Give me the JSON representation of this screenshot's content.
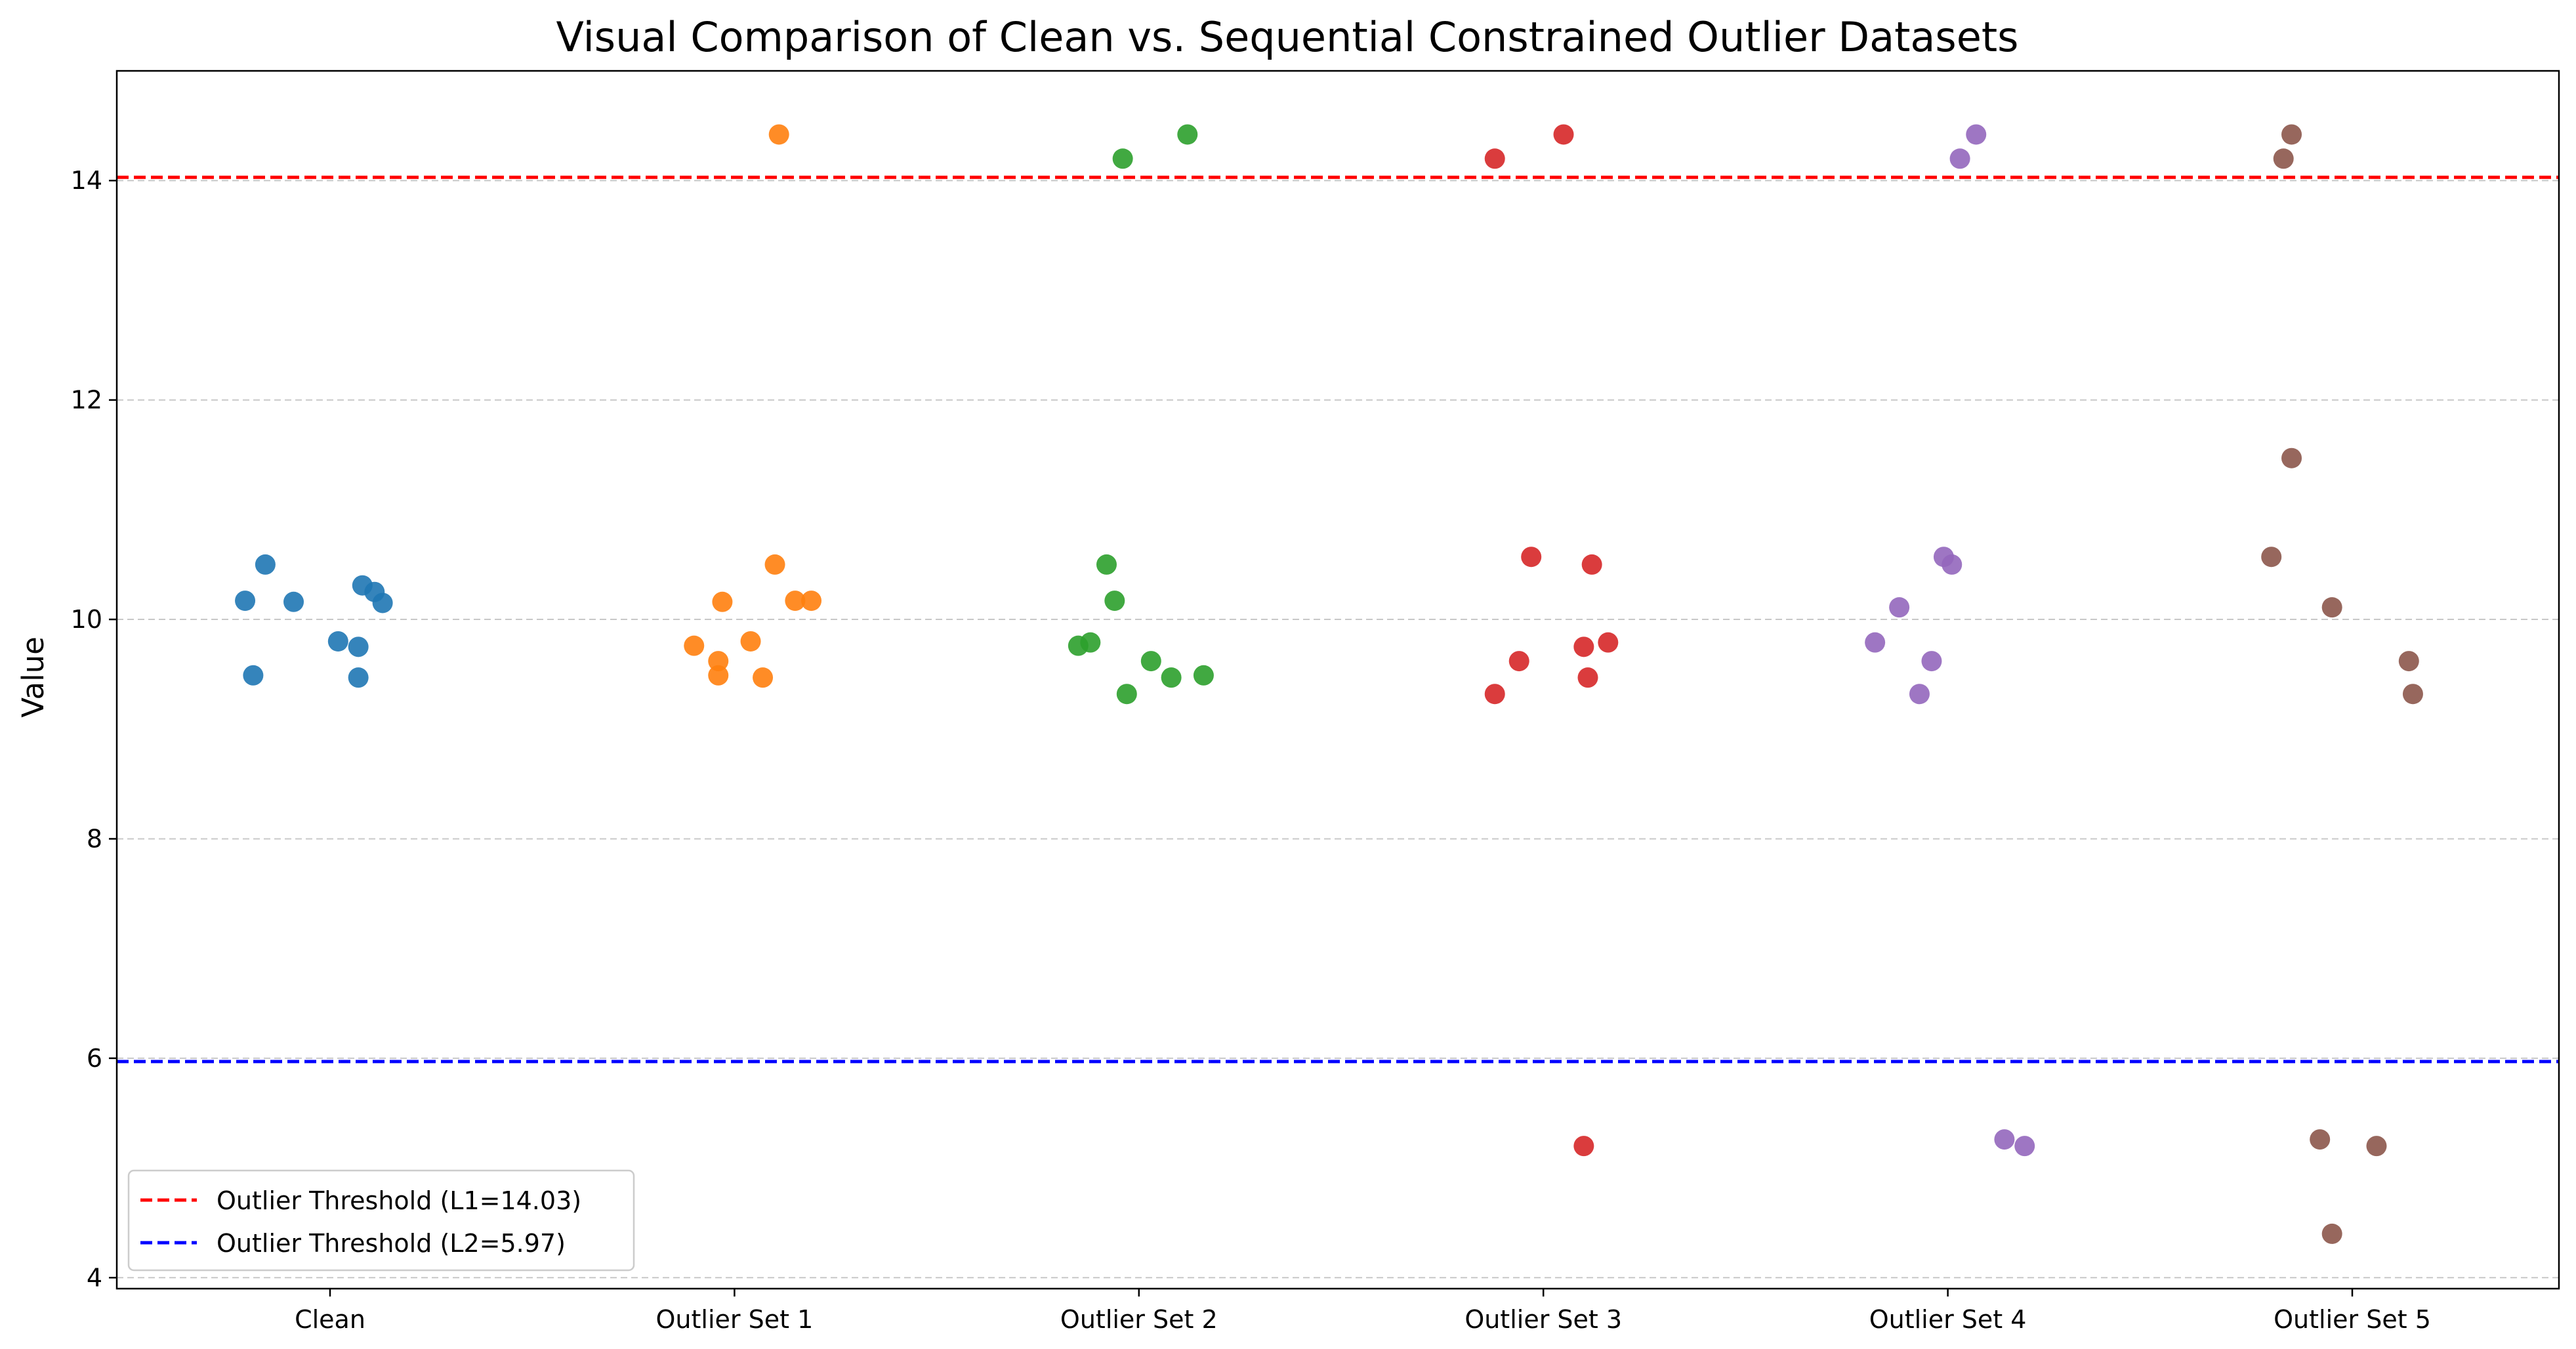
{
  "chart_data": {
    "type": "scatter",
    "title": "Visual Comparison of Clean vs. Sequential Constrained Outlier Datasets",
    "xlabel": "",
    "ylabel": "Value",
    "ylim": [
      3.9,
      15.0
    ],
    "yticks": [
      4,
      6,
      8,
      10,
      12,
      14
    ],
    "grid": "y-dashed",
    "legend_position": "bottom-left",
    "categories": [
      "Clean",
      "Outlier Set 1",
      "Outlier Set 2",
      "Outlier Set 3",
      "Outlier Set 4",
      "Outlier Set 5"
    ],
    "series": [
      {
        "category": "Clean",
        "color": "#1f77b4",
        "points": [
          {
            "x": -0.21,
            "y": 10.17
          },
          {
            "x": -0.19,
            "y": 9.49
          },
          {
            "x": -0.16,
            "y": 10.5
          },
          {
            "x": -0.09,
            "y": 10.16
          },
          {
            "x": 0.02,
            "y": 9.8
          },
          {
            "x": 0.07,
            "y": 9.75
          },
          {
            "x": 0.07,
            "y": 9.47
          },
          {
            "x": 0.08,
            "y": 10.31
          },
          {
            "x": 0.11,
            "y": 10.25
          },
          {
            "x": 0.13,
            "y": 10.15
          }
        ]
      },
      {
        "category": "Outlier Set 1",
        "color": "#ff7f0e",
        "points": [
          {
            "x": -0.1,
            "y": 9.76
          },
          {
            "x": -0.04,
            "y": 9.62
          },
          {
            "x": -0.04,
            "y": 9.49
          },
          {
            "x": -0.03,
            "y": 10.16
          },
          {
            "x": 0.04,
            "y": 9.8
          },
          {
            "x": 0.07,
            "y": 9.47
          },
          {
            "x": 0.1,
            "y": 10.5
          },
          {
            "x": 0.11,
            "y": 14.42
          },
          {
            "x": 0.15,
            "y": 10.17
          },
          {
            "x": 0.19,
            "y": 10.17
          }
        ]
      },
      {
        "category": "Outlier Set 2",
        "color": "#2ca02c",
        "points": [
          {
            "x": -0.15,
            "y": 9.76
          },
          {
            "x": -0.12,
            "y": 9.79
          },
          {
            "x": -0.08,
            "y": 10.5
          },
          {
            "x": -0.06,
            "y": 10.17
          },
          {
            "x": -0.04,
            "y": 14.2
          },
          {
            "x": -0.03,
            "y": 9.32
          },
          {
            "x": 0.03,
            "y": 9.62
          },
          {
            "x": 0.08,
            "y": 9.47
          },
          {
            "x": 0.12,
            "y": 14.42
          },
          {
            "x": 0.16,
            "y": 9.49
          }
        ]
      },
      {
        "category": "Outlier Set 3",
        "color": "#d62728",
        "points": [
          {
            "x": -0.12,
            "y": 9.32
          },
          {
            "x": -0.12,
            "y": 14.2
          },
          {
            "x": -0.06,
            "y": 9.62
          },
          {
            "x": -0.03,
            "y": 10.57
          },
          {
            "x": 0.05,
            "y": 14.42
          },
          {
            "x": 0.1,
            "y": 9.75
          },
          {
            "x": 0.1,
            "y": 5.2
          },
          {
            "x": 0.11,
            "y": 9.47
          },
          {
            "x": 0.12,
            "y": 10.5
          },
          {
            "x": 0.16,
            "y": 9.79
          }
        ]
      },
      {
        "category": "Outlier Set 4",
        "color": "#9467bd",
        "points": [
          {
            "x": -0.18,
            "y": 9.79
          },
          {
            "x": -0.12,
            "y": 10.11
          },
          {
            "x": -0.07,
            "y": 9.32
          },
          {
            "x": -0.04,
            "y": 9.62
          },
          {
            "x": -0.01,
            "y": 10.57
          },
          {
            "x": 0.01,
            "y": 10.5
          },
          {
            "x": 0.03,
            "y": 14.2
          },
          {
            "x": 0.07,
            "y": 14.42
          },
          {
            "x": 0.14,
            "y": 5.26
          },
          {
            "x": 0.19,
            "y": 5.2
          }
        ]
      },
      {
        "category": "Outlier Set 5",
        "color": "#8c564b",
        "points": [
          {
            "x": -0.2,
            "y": 10.57
          },
          {
            "x": -0.17,
            "y": 14.2
          },
          {
            "x": -0.15,
            "y": 11.47
          },
          {
            "x": -0.15,
            "y": 14.42
          },
          {
            "x": -0.08,
            "y": 5.26
          },
          {
            "x": -0.05,
            "y": 4.4
          },
          {
            "x": -0.05,
            "y": 10.11
          },
          {
            "x": 0.06,
            "y": 5.2
          },
          {
            "x": 0.14,
            "y": 9.62
          },
          {
            "x": 0.15,
            "y": 9.32
          }
        ]
      }
    ],
    "thresholds": [
      {
        "label": "Outlier Threshold (L1=14.03)",
        "value": 14.03,
        "color": "#ff0000"
      },
      {
        "label": "Outlier Threshold (L2=5.97)",
        "value": 5.97,
        "color": "#0000ff"
      }
    ]
  }
}
